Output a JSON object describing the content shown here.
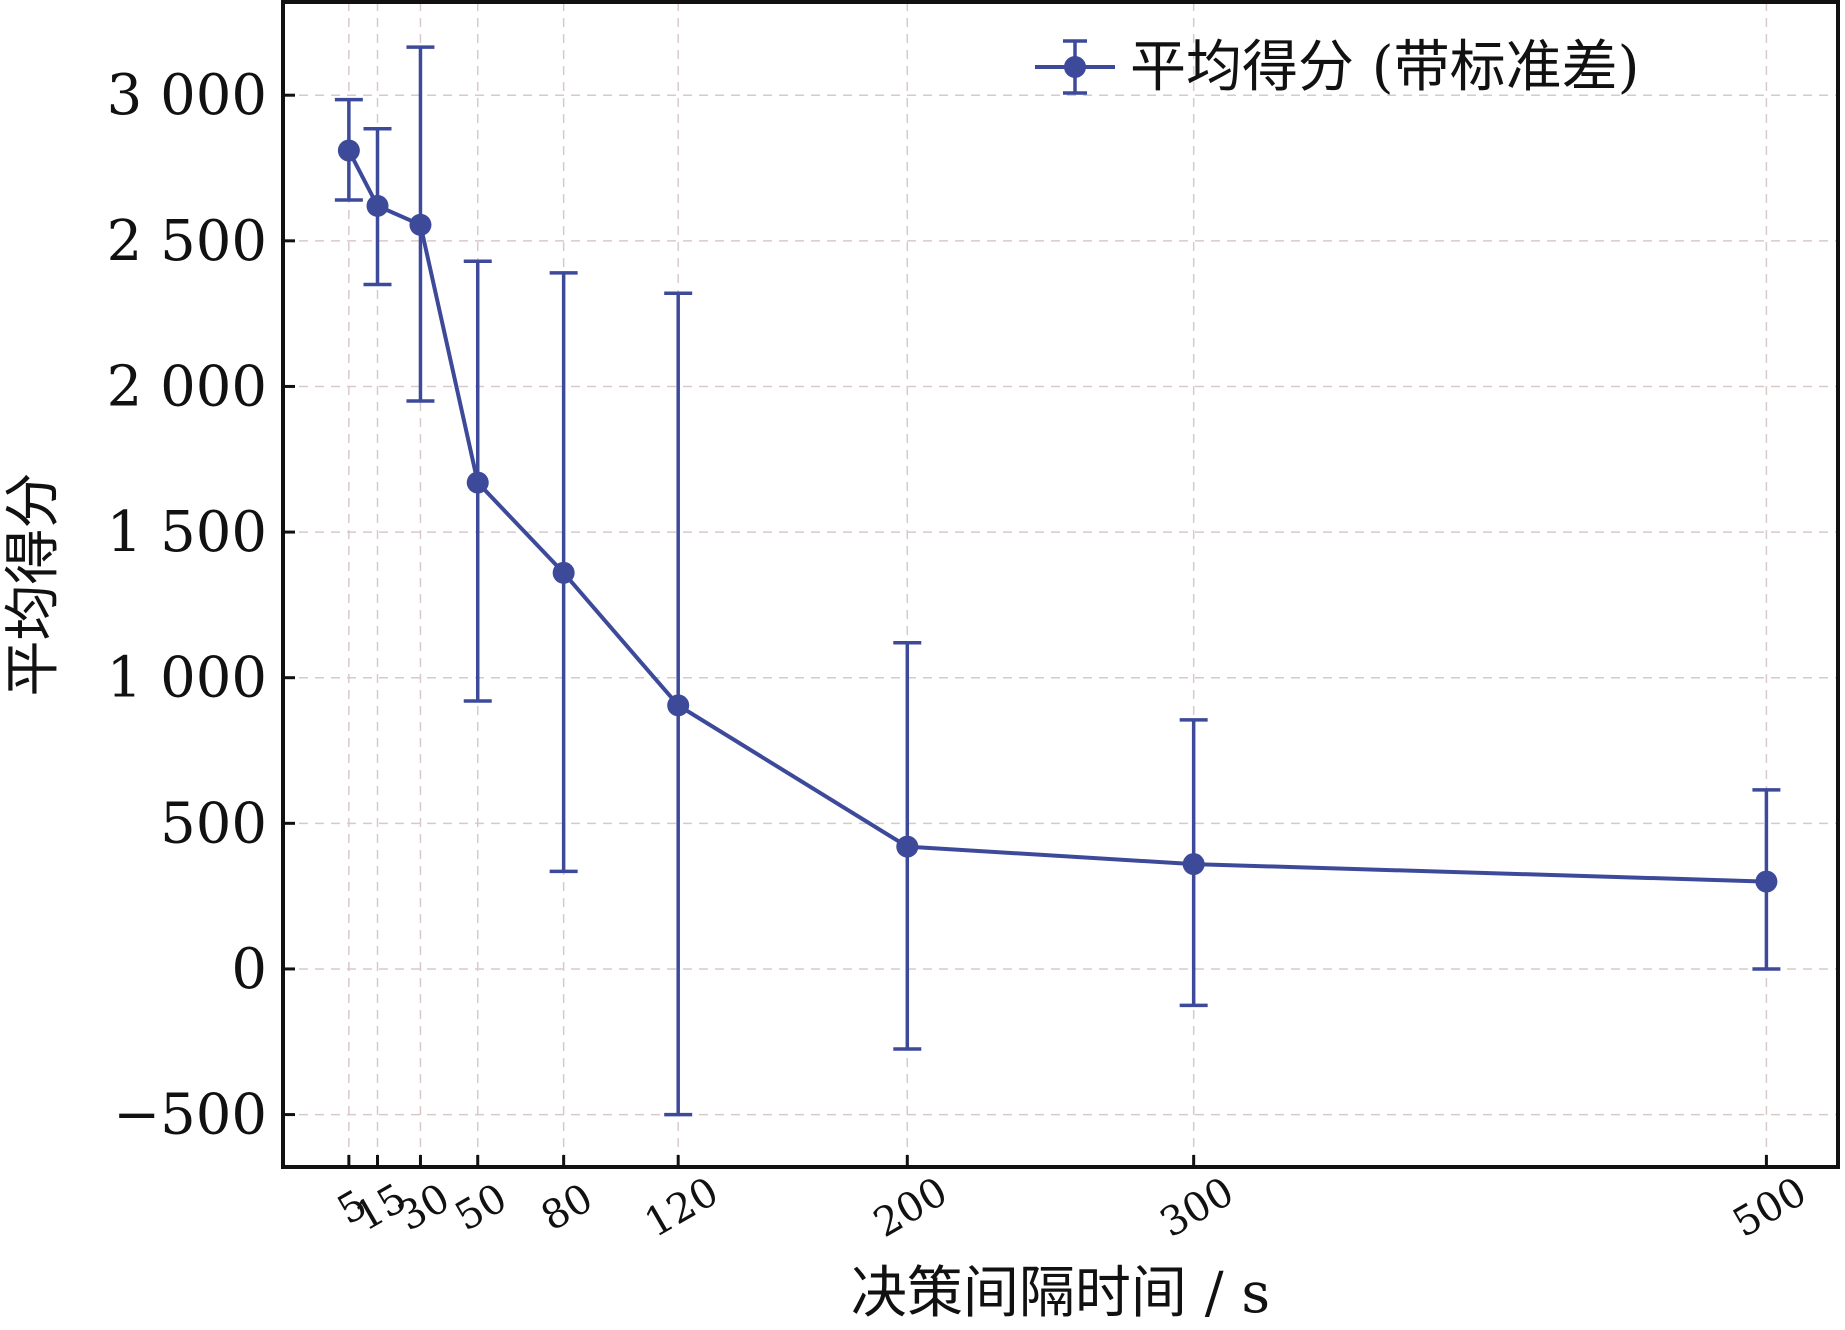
{
  "chart_data": {
    "type": "line",
    "title": "",
    "xlabel": "决策间隔时间 / s",
    "ylabel": "平均得分",
    "x": [
      5,
      15,
      30,
      50,
      80,
      120,
      200,
      300,
      500
    ],
    "x_tick_labels": [
      "5",
      "15",
      "30",
      "50",
      "80",
      "120",
      "200",
      "300",
      "500"
    ],
    "y_ticks": [
      -500,
      0,
      500,
      1000,
      1500,
      2000,
      2500,
      3000
    ],
    "y_tick_labels": [
      "−500",
      "0",
      "500",
      "1 000",
      "1 500",
      "2 000",
      "2 500",
      "3 000"
    ],
    "xlim": [
      -18,
      525
    ],
    "ylim": [
      -680,
      3320
    ],
    "grid": true,
    "legend_position": "top-right",
    "series": [
      {
        "name": "平均得分 (带标准差)",
        "color": "#3d4a9a",
        "values": [
          2810,
          2620,
          2555,
          1670,
          1360,
          905,
          420,
          360,
          300
        ],
        "error_low": [
          2640,
          2350,
          1950,
          920,
          335,
          -500,
          -275,
          -125,
          0
        ],
        "error_high": [
          2985,
          2885,
          3165,
          2430,
          2390,
          2320,
          1120,
          855,
          615
        ]
      }
    ]
  }
}
